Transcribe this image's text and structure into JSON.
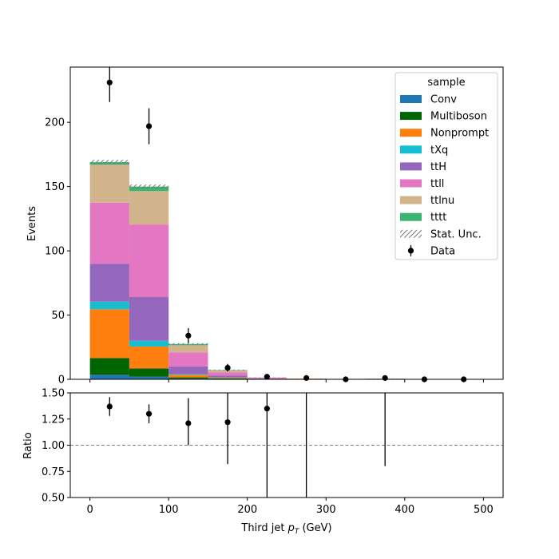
{
  "chart_data": [
    {
      "type": "stacked-bar",
      "xlabel": "Third jet  p_T (GeV)",
      "xlabel_main": "Third jet  ",
      "xlabel_math": "p",
      "xlabel_sub": "T",
      "xlabel_unit": " (GeV)",
      "ylabel": "Events",
      "xlim": [
        -25,
        525
      ],
      "ylim": [
        0,
        243
      ],
      "bin_edges": [
        0,
        50,
        100,
        150,
        200,
        250,
        300,
        350,
        400,
        450,
        500
      ],
      "x_ticks": [
        0,
        100,
        200,
        300,
        400,
        500
      ],
      "y_ticks": [
        0,
        50,
        100,
        150,
        200
      ],
      "legend_title": "sample",
      "legend_position": "top-right",
      "series": [
        {
          "name": "Conv",
          "color": "#1f77b4",
          "values": [
            3.5,
            2.0,
            0.5,
            0.1,
            0,
            0,
            0,
            0,
            0,
            0
          ]
        },
        {
          "name": "Multiboson",
          "color": "#006400",
          "values": [
            13.0,
            6.5,
            1.0,
            0.6,
            0.2,
            0,
            0,
            0.4,
            0,
            0
          ]
        },
        {
          "name": "Nonprompt",
          "color": "#ff7f0e",
          "values": [
            38.0,
            17.0,
            2.0,
            0.5,
            0.2,
            0.5,
            0,
            0,
            0,
            0
          ]
        },
        {
          "name": "tXq",
          "color": "#17becf",
          "values": [
            6.0,
            4.5,
            0.5,
            0.3,
            0,
            0,
            0,
            0,
            0,
            0
          ]
        },
        {
          "name": "ttH",
          "color": "#9467bd",
          "values": [
            29.5,
            34.0,
            6.0,
            1.5,
            0.4,
            0,
            0,
            0,
            0,
            0
          ]
        },
        {
          "name": "ttll",
          "color": "#e377c2",
          "values": [
            47.5,
            56.5,
            11.0,
            2.5,
            0.5,
            0,
            0.3,
            0,
            0,
            0
          ]
        },
        {
          "name": "ttlnu",
          "color": "#d2b48c",
          "values": [
            29.5,
            26.0,
            5.5,
            1.5,
            0.2,
            0,
            0,
            0,
            0,
            0
          ]
        },
        {
          "name": "tttt",
          "color": "#3cb371",
          "values": [
            2.0,
            3.5,
            1.0,
            0.3,
            0,
            0,
            0,
            0,
            0,
            0
          ]
        }
      ],
      "stat_unc_label": "Stat. Unc.",
      "stat_unc": [
        1.8,
        1.6,
        0.6,
        0.3,
        0.1,
        0.1,
        0.1,
        0.1,
        0,
        0
      ],
      "data": {
        "name": "Data",
        "x": [
          25,
          75,
          125,
          175,
          225,
          275,
          325,
          375,
          425,
          475
        ],
        "y": [
          231,
          197,
          34,
          9,
          2,
          1,
          0,
          1,
          0,
          0
        ],
        "yerr": [
          15.2,
          14.0,
          5.8,
          3.0,
          1.4,
          1.0,
          0,
          1.0,
          0,
          0
        ]
      }
    },
    {
      "type": "scatter",
      "ylabel": "Ratio",
      "xlim": [
        -25,
        525
      ],
      "ylim": [
        0.5,
        1.5
      ],
      "y_ticks": [
        0.5,
        0.75,
        1.0,
        1.25,
        1.5
      ],
      "y_tick_labels": [
        "0.50",
        "0.75",
        "1.00",
        "1.25",
        "1.50"
      ],
      "x_ticks": [
        0,
        100,
        200,
        300,
        400,
        500
      ],
      "x_tick_labels": [
        "0",
        "100",
        "200",
        "300",
        "400",
        "500"
      ],
      "reference_line": 1.0,
      "x": [
        25,
        75,
        125,
        175,
        225,
        275,
        375
      ],
      "y": [
        1.37,
        1.3,
        1.21,
        1.22,
        1.35,
        null,
        null
      ],
      "yerr_low": [
        0.09,
        0.09,
        0.21,
        0.4,
        1.35,
        1.0,
        0.2
      ],
      "yerr_high": [
        0.09,
        0.09,
        0.24,
        0.4,
        1.35,
        1.0,
        1.0
      ]
    }
  ]
}
